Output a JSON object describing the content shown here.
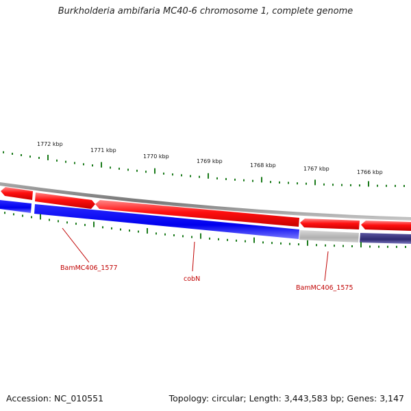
{
  "title": "Burkholderia ambifaria MC40-6 chromosome 1, complete genome",
  "footer": {
    "accession": "Accession: NC_010551",
    "summary": "Topology: circular; Length: 3,443,583 bp; Genes: 3,147"
  },
  "ruler": {
    "ticks": [
      "1772 kbp",
      "1771 kbp",
      "1770 kbp",
      "1769 kbp",
      "1768 kbp",
      "1767 kbp",
      "1766 kbp"
    ],
    "tick_color": "#1a7a1a"
  },
  "gene_labels": [
    "BamMC406_1577",
    "cobN",
    "BamMC406_1575"
  ],
  "colors": {
    "forward_gene": "#ee1111",
    "reverse_gene": "#1a1aee",
    "pseudo_gene": "#b8b8b8",
    "other_gene": "#3a357a",
    "backbone": "#888888",
    "label": "#c00000"
  }
}
